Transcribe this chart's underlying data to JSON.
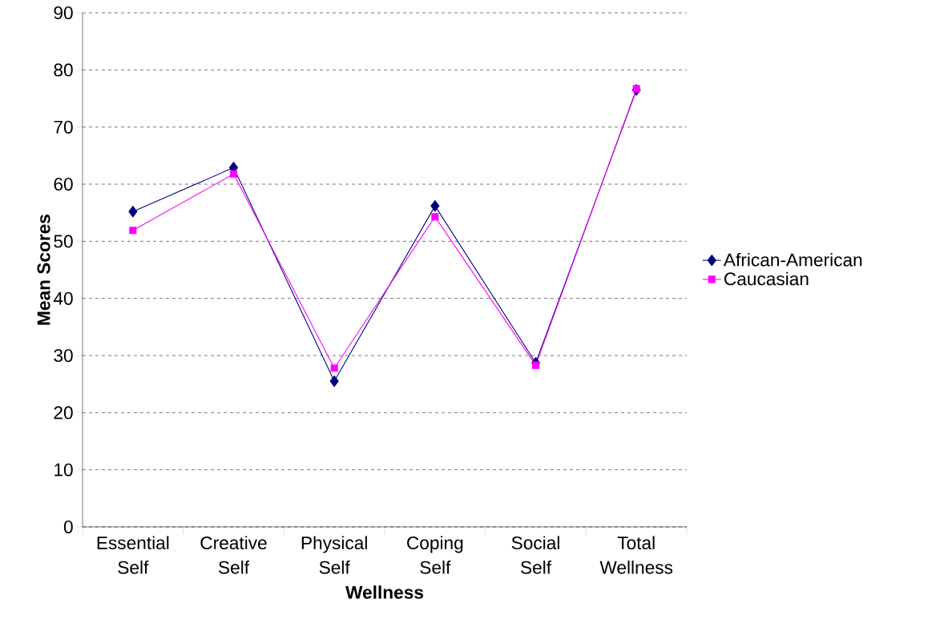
{
  "chart_data": {
    "type": "line",
    "xlabel": "Wellness",
    "ylabel": "Mean Scores",
    "categories": [
      "Essential Self",
      "Creative Self",
      "Physical Self",
      "Coping Self",
      "Social Self",
      "Total Wellness"
    ],
    "series": [
      {
        "name": "African-American",
        "color": "#000080",
        "marker": "diamond",
        "values": [
          55.2,
          62.9,
          25.5,
          56.2,
          28.7,
          76.5
        ]
      },
      {
        "name": "Caucasian",
        "color": "#ff00ff",
        "marker": "square",
        "values": [
          51.9,
          61.8,
          27.8,
          54.3,
          28.3,
          76.7
        ]
      }
    ],
    "ylim": [
      0,
      90
    ],
    "yticks": [
      0,
      10,
      20,
      30,
      40,
      50,
      60,
      70,
      80,
      90
    ],
    "grid": "y",
    "legend": "right",
    "line_style": "solid"
  }
}
